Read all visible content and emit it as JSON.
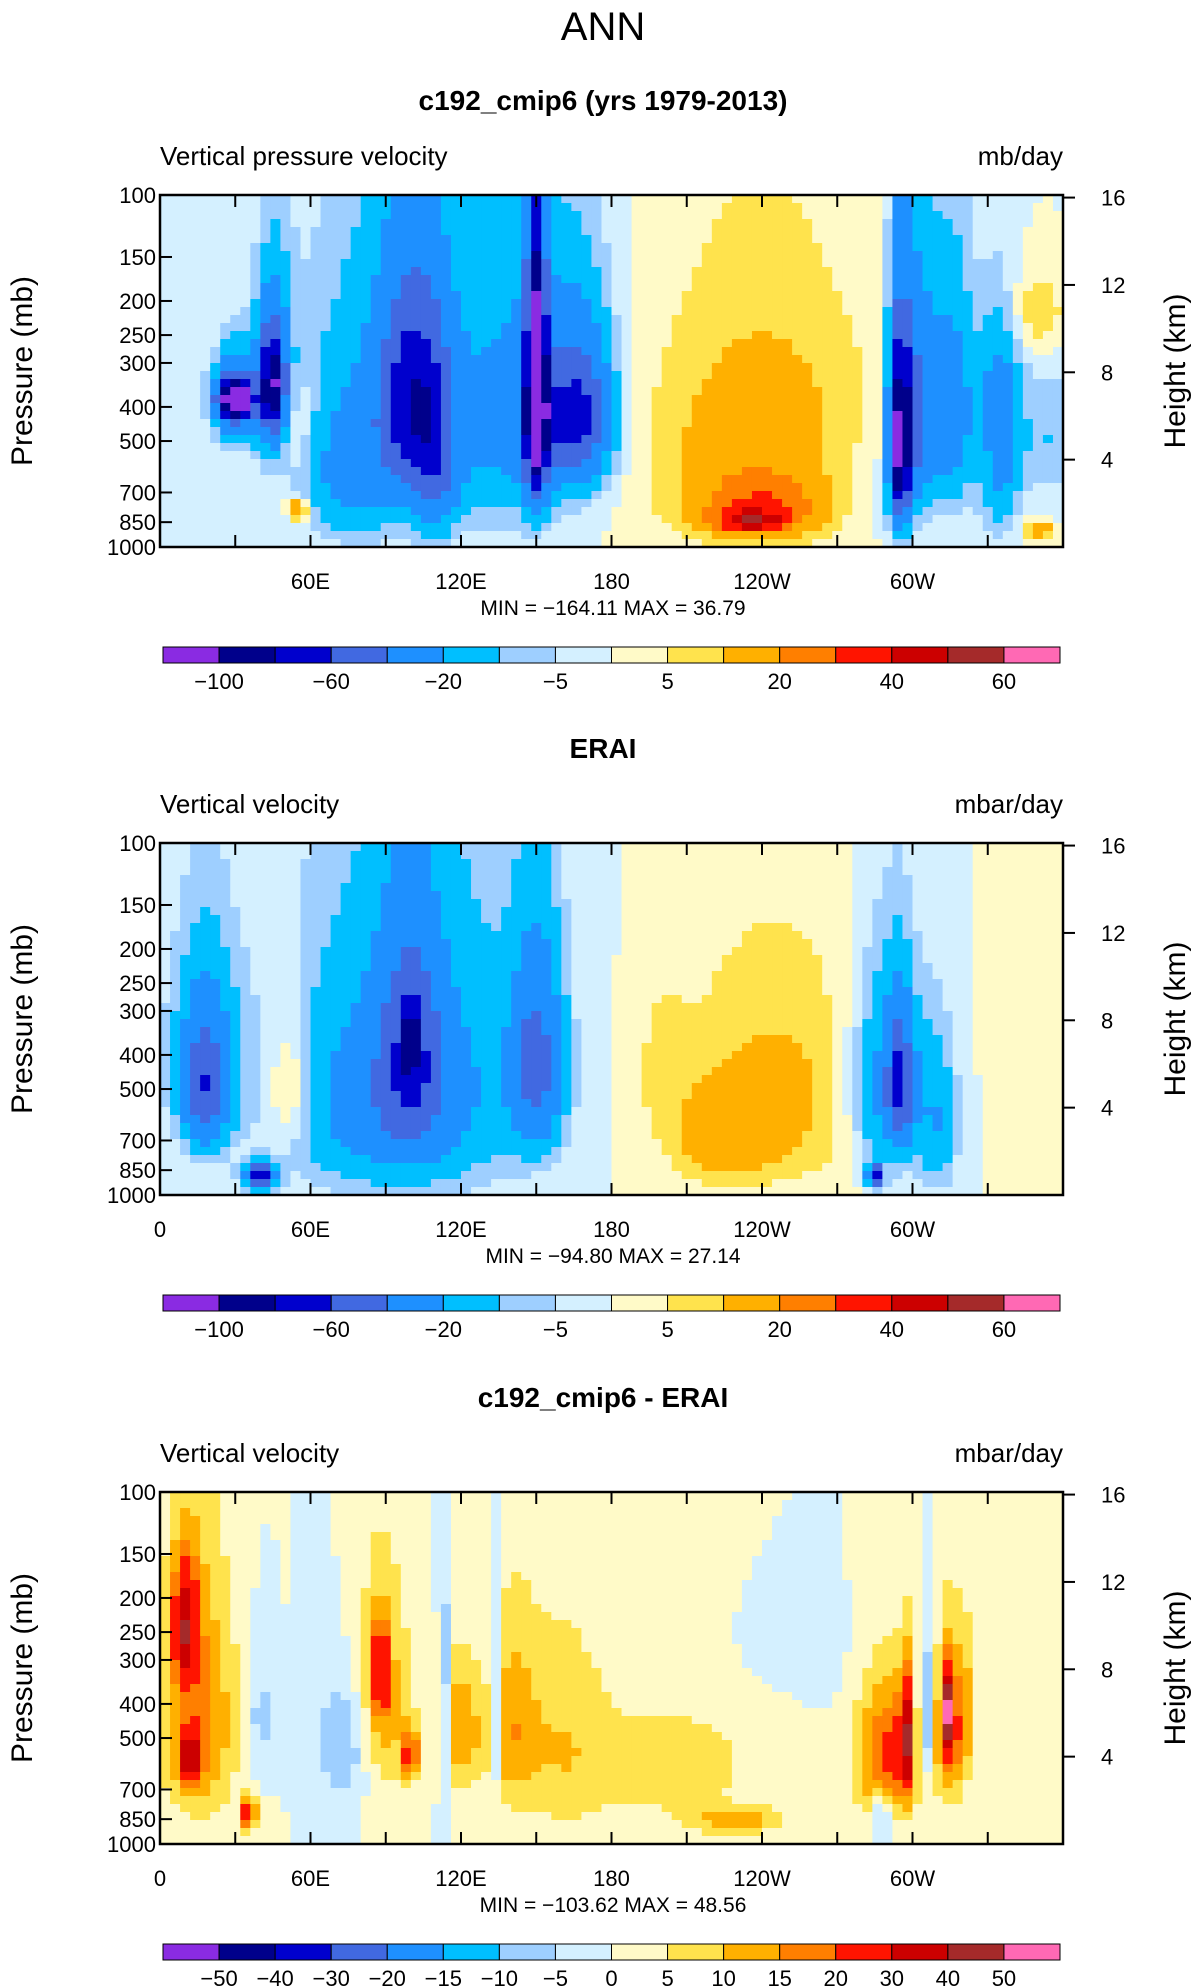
{
  "season": "ANN",
  "colors": {
    "plot_palette": [
      "#8a2be2",
      "#00008b",
      "#0000cd",
      "#4169e1",
      "#1e90ff",
      "#00bfff",
      "#9ecfff",
      "#d4f0ff",
      "#fffac8",
      "#ffe34d",
      "#ffb000",
      "#ff7f00",
      "#ff1400",
      "#cc0000",
      "#a52a2a",
      "#ff69b4"
    ]
  },
  "chart_data": [
    {
      "type": "heatmap",
      "title": "c192_cmip6 (yrs 1979-2013)",
      "left_label": "Vertical pressure velocity",
      "right_label": "mb/day",
      "ylabel": "Pressure (mb)",
      "y2label": "Height (km)",
      "y_ticks": [
        "100",
        "150",
        "200",
        "250",
        "300",
        "400",
        "500",
        "700",
        "850",
        "1000"
      ],
      "y2_ticks": [
        "16",
        "12",
        "8",
        "4"
      ],
      "x_ticks": [
        "60E",
        "120E",
        "180",
        "120W",
        "60W"
      ],
      "stats": "MIN = −164.11   MAX =   36.79",
      "colorbar_labels": [
        "−100",
        "−60",
        "−20",
        "−5",
        "5",
        "20",
        "40",
        "60"
      ],
      "blobs": [
        [
          30,
          380,
          8,
          120,
          -18
        ],
        [
          30,
          380,
          8,
          80,
          -48
        ],
        [
          30,
          380,
          6,
          40,
          -95
        ],
        [
          45,
          350,
          8,
          200,
          -25
        ],
        [
          45,
          350,
          5,
          120,
          -80
        ],
        [
          52,
          440,
          9,
          150,
          12
        ],
        [
          55,
          780,
          4,
          60,
          22
        ],
        [
          90,
          450,
          32,
          380,
          -22
        ],
        [
          100,
          380,
          12,
          250,
          -55
        ],
        [
          110,
          560,
          8,
          300,
          -35
        ],
        [
          140,
          420,
          30,
          380,
          -20
        ],
        [
          150,
          380,
          4,
          300,
          -120
        ],
        [
          160,
          430,
          16,
          200,
          -45
        ],
        [
          170,
          420,
          10,
          200,
          -28
        ],
        [
          75,
          650,
          15,
          250,
          -15
        ],
        [
          240,
          520,
          45,
          400,
          16
        ],
        [
          240,
          780,
          25,
          150,
          22
        ],
        [
          235,
          850,
          14,
          60,
          28
        ],
        [
          295,
          520,
          4,
          300,
          -95
        ],
        [
          300,
          420,
          8,
          300,
          -45
        ],
        [
          315,
          420,
          10,
          280,
          -32
        ],
        [
          335,
          580,
          8,
          300,
          -22
        ],
        [
          335,
          350,
          8,
          150,
          -15
        ],
        [
          355,
          500,
          14,
          200,
          -10
        ],
        [
          280,
          700,
          25,
          250,
          -5
        ],
        [
          350,
          220,
          12,
          60,
          10
        ],
        [
          350,
          900,
          6,
          50,
          20
        ]
      ]
    },
    {
      "type": "heatmap",
      "title": "ERAI",
      "left_label": "Vertical velocity",
      "right_label": "mbar/day",
      "ylabel": "Pressure (mb)",
      "y2label": "Height (km)",
      "y_ticks": [
        "100",
        "150",
        "200",
        "250",
        "300",
        "400",
        "500",
        "700",
        "850",
        "1000"
      ],
      "y2_ticks": [
        "16",
        "12",
        "8",
        "4"
      ],
      "x_ticks": [
        "0",
        "60E",
        "120E",
        "180",
        "120W",
        "60W"
      ],
      "stats": "MIN = −94.80   MAX =   27.14",
      "colorbar_labels": [
        "−100",
        "−60",
        "−20",
        "−5",
        "5",
        "20",
        "40",
        "60"
      ],
      "blobs": [
        [
          18,
          420,
          14,
          260,
          -22
        ],
        [
          18,
          500,
          8,
          200,
          -40
        ],
        [
          40,
          880,
          6,
          70,
          -70
        ],
        [
          52,
          500,
          9,
          200,
          14
        ],
        [
          100,
          450,
          45,
          420,
          -22
        ],
        [
          100,
          400,
          12,
          260,
          -40
        ],
        [
          100,
          360,
          2,
          80,
          -80
        ],
        [
          150,
          430,
          10,
          260,
          -45
        ],
        [
          90,
          600,
          35,
          300,
          -15
        ],
        [
          245,
          520,
          40,
          380,
          12
        ],
        [
          225,
          700,
          20,
          200,
          12
        ],
        [
          200,
          420,
          10,
          200,
          5
        ],
        [
          290,
          500,
          14,
          300,
          -28
        ],
        [
          285,
          880,
          3,
          60,
          -80
        ],
        [
          295,
          480,
          5,
          200,
          -50
        ],
        [
          310,
          620,
          8,
          300,
          -18
        ],
        [
          335,
          300,
          8,
          100,
          5
        ]
      ]
    },
    {
      "type": "heatmap",
      "title": "c192_cmip6 - ERAI",
      "left_label": "Vertical velocity",
      "right_label": "mbar/day",
      "ylabel": "Pressure (mb)",
      "y2label": "Height (km)",
      "y_ticks": [
        "100",
        "150",
        "200",
        "250",
        "300",
        "400",
        "500",
        "700",
        "850",
        "1000"
      ],
      "y2_ticks": [
        "16",
        "12",
        "8",
        "4"
      ],
      "x_ticks": [
        "0",
        "60E",
        "120E",
        "180",
        "120W",
        "60W"
      ],
      "stats": "MIN = −103.62   MAX =   48.56",
      "colorbar_labels": [
        "−50",
        "−40",
        "−30",
        "−20",
        "−15",
        "−10",
        "−5",
        "0",
        "5",
        "10",
        "15",
        "20",
        "30",
        "40",
        "50"
      ],
      "blobs": [
        [
          15,
          450,
          15,
          350,
          18
        ],
        [
          10,
          240,
          5,
          90,
          30
        ],
        [
          12,
          580,
          4,
          90,
          30
        ],
        [
          35,
          820,
          3,
          80,
          32
        ],
        [
          40,
          440,
          5,
          180,
          -8
        ],
        [
          75,
          520,
          12,
          220,
          -12
        ],
        [
          88,
          420,
          12,
          280,
          15
        ],
        [
          88,
          320,
          3,
          90,
          28
        ],
        [
          100,
          560,
          3,
          90,
          26
        ],
        [
          113,
          440,
          2,
          300,
          -15
        ],
        [
          120,
          480,
          8,
          200,
          15
        ],
        [
          133,
          440,
          2,
          300,
          -15
        ],
        [
          140,
          470,
          10,
          280,
          12
        ],
        [
          160,
          520,
          18,
          380,
          8
        ],
        [
          205,
          600,
          42,
          300,
          7
        ],
        [
          230,
          860,
          18,
          70,
          12
        ],
        [
          250,
          300,
          40,
          120,
          -2
        ],
        [
          290,
          560,
          12,
          260,
          22
        ],
        [
          288,
          820,
          2,
          120,
          -28
        ],
        [
          298,
          500,
          3,
          200,
          30
        ],
        [
          305,
          440,
          3,
          200,
          -15
        ],
        [
          315,
          480,
          6,
          250,
          22
        ],
        [
          314,
          420,
          2,
          100,
          35
        ],
        [
          322,
          420,
          4,
          200,
          8
        ],
        [
          345,
          480,
          12,
          250,
          4
        ],
        [
          390,
          690,
          4,
          30,
          -4
        ]
      ]
    }
  ]
}
